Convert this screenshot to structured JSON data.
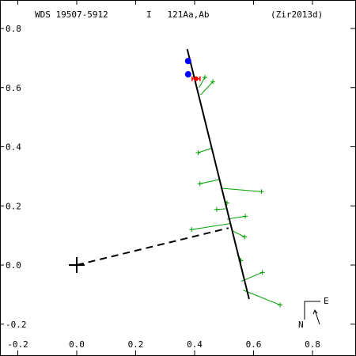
{
  "chart_data": {
    "type": "scatter",
    "title_left": "WDS 19507-5912",
    "title_mid": "I   121Aa,Ab",
    "title_right": "(Zir2013d)",
    "xlim": [
      -0.25,
      0.95
    ],
    "ylim": [
      -0.22,
      0.82
    ],
    "y_inverted": true,
    "x_ticks": [
      -0.2,
      0.0,
      0.2,
      0.4,
      0.6,
      0.8
    ],
    "x_tick_labels": [
      "-0.2",
      "0.0",
      "0.2",
      "0.4",
      "0.6",
      "0.8"
    ],
    "y_ticks": [
      0.8,
      0.6,
      0.4,
      0.2,
      0.0,
      -0.2
    ],
    "y_tick_labels": [
      "0.8",
      "0.6",
      "0.4",
      "0.2",
      "0.0",
      "-0.2"
    ],
    "grid": false,
    "orbit_line": [
      [
        0.375,
        0.73
      ],
      [
        0.585,
        -0.115
      ]
    ],
    "primary_star": [
      0.0,
      0.0
    ],
    "node_line": [
      [
        0.0,
        0.0
      ],
      [
        0.515,
        0.125
      ]
    ],
    "observations": [
      {
        "obs": [
          0.435,
          0.635
        ],
        "fit": [
          0.415,
          0.6
        ]
      },
      {
        "obs": [
          0.462,
          0.62
        ],
        "fit": [
          0.42,
          0.575
        ]
      },
      {
        "obs": [
          0.412,
          0.38
        ],
        "fit": [
          0.458,
          0.395
        ]
      },
      {
        "obs": [
          0.418,
          0.275
        ],
        "fit": [
          0.487,
          0.29
        ]
      },
      {
        "obs": [
          0.627,
          0.248
        ],
        "fit": [
          0.488,
          0.26
        ]
      },
      {
        "obs": [
          0.51,
          0.21
        ],
        "fit": [
          0.502,
          0.218
        ]
      },
      {
        "obs": [
          0.475,
          0.188
        ],
        "fit": [
          0.504,
          0.19
        ]
      },
      {
        "obs": [
          0.572,
          0.165
        ],
        "fit": [
          0.51,
          0.155
        ]
      },
      {
        "obs": [
          0.39,
          0.12
        ],
        "fit": [
          0.52,
          0.14
        ]
      },
      {
        "obs": [
          0.57,
          0.095
        ],
        "fit": [
          0.53,
          0.115
        ]
      },
      {
        "obs": [
          0.557,
          0.015
        ],
        "fit": [
          0.548,
          0.035
        ]
      },
      {
        "obs": [
          0.63,
          -0.025
        ],
        "fit": [
          0.558,
          -0.055
        ]
      },
      {
        "obs": [
          0.69,
          -0.135
        ],
        "fit": [
          0.565,
          -0.085
        ]
      }
    ],
    "blue_points": [
      [
        0.378,
        0.69
      ],
      [
        0.378,
        0.645
      ]
    ],
    "red_point": [
      0.405,
      0.63
    ],
    "compass": {
      "east": "E",
      "north": "N"
    },
    "colors": {
      "orbit": "#000000",
      "residual": "#00a000",
      "observation": "#00a000",
      "blue": "#0000ff",
      "red": "#ff0000"
    }
  }
}
